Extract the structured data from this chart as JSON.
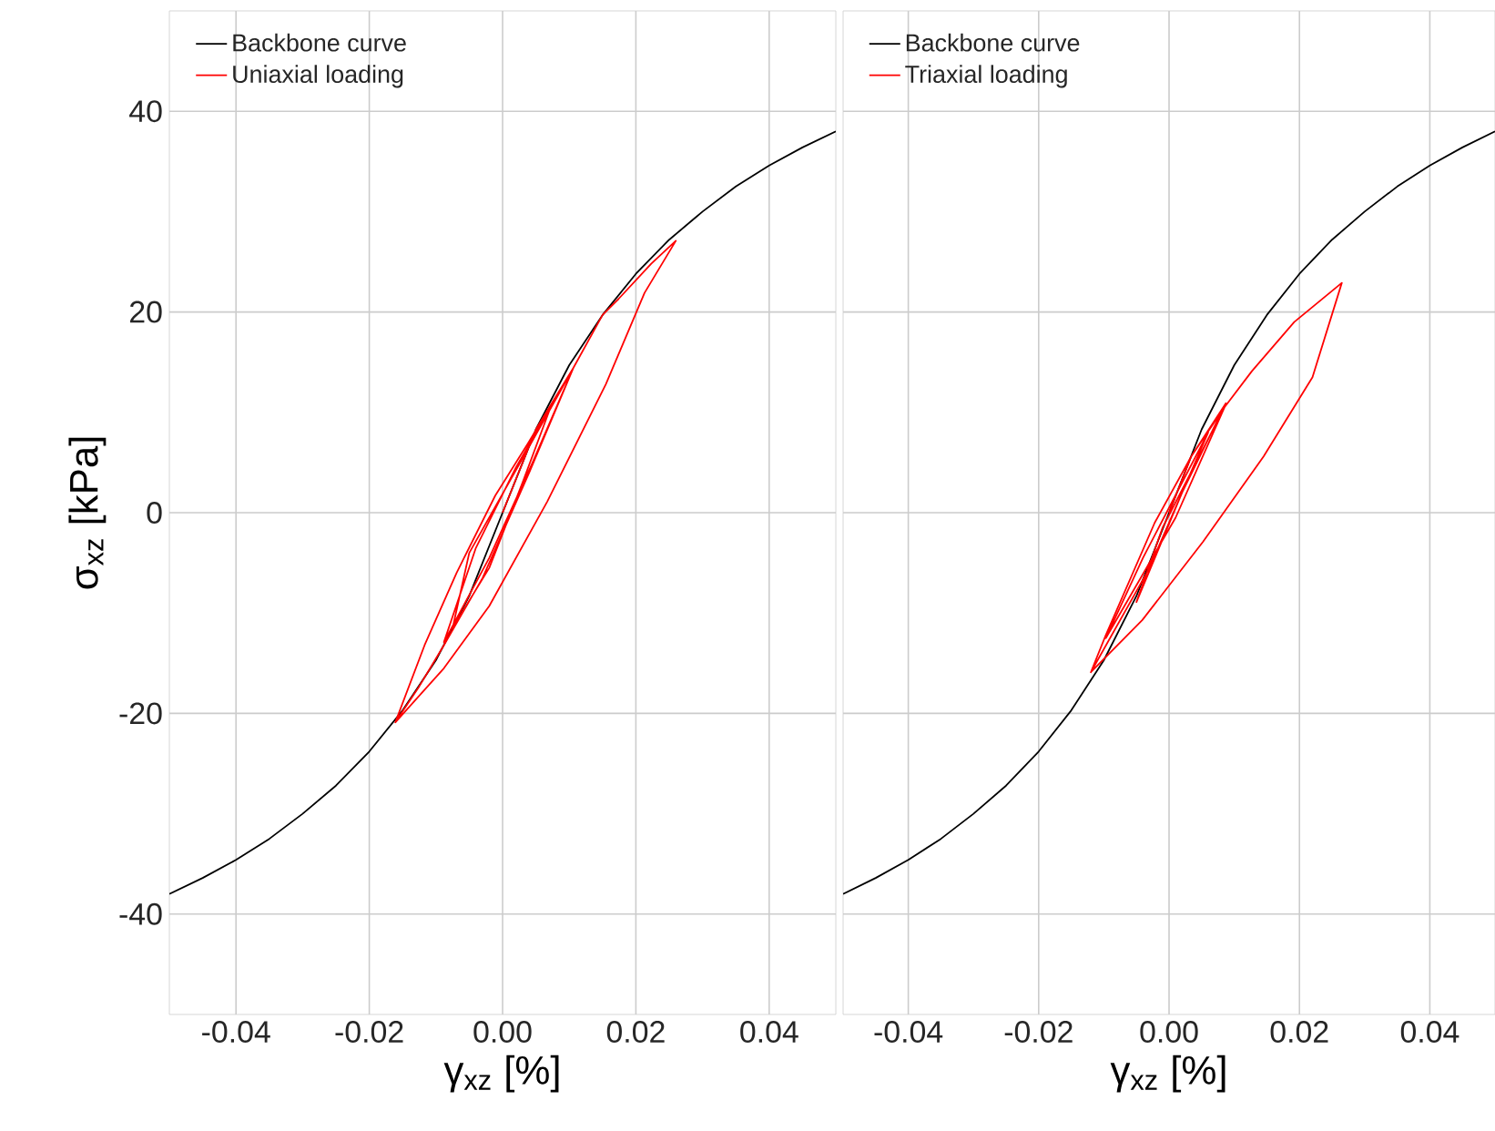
{
  "chart_data": [
    {
      "type": "line",
      "xlabel": "γ$_{xz}$ [%]",
      "ylabel": "σ$_{xz}$ [kPa]",
      "xlim": [
        -0.05,
        0.05
      ],
      "ylim": [
        -50,
        50
      ],
      "xticks": [
        -0.04,
        -0.02,
        {
          "value": 0,
          "label": "0.00"
        },
        0.02,
        0.04
      ],
      "yticks": [
        -40,
        -20,
        0,
        20,
        40
      ],
      "grid": true,
      "legend": "top left",
      "series": [
        {
          "name": "Backbone curve",
          "color": "#000000",
          "x": [
            -0.05,
            -0.045,
            -0.04,
            -0.035,
            -0.03,
            -0.025,
            -0.02,
            -0.015,
            -0.01,
            -0.005,
            0,
            0.005,
            0.01,
            0.015,
            0.02,
            0.025,
            0.03,
            0.035,
            0.04,
            0.045,
            0.05
          ],
          "values": [
            -38.0,
            -36.4,
            -34.6,
            -32.5,
            -30.0,
            -27.2,
            -23.8,
            -19.7,
            -14.7,
            -8.3,
            0,
            8.3,
            14.7,
            19.7,
            23.8,
            27.2,
            30.0,
            32.5,
            34.6,
            36.4,
            38.0
          ]
        },
        {
          "name": "Uniaxial loading",
          "color": "#ff0000",
          "x": [
            0,
            0.005,
            0.0106,
            0.0045,
            -0.002,
            -0.0088,
            -0.004,
            0.002,
            0.0072,
            0.003,
            -0.002,
            -0.0075,
            -0.005,
            0.0035,
            0.0106,
            0.004,
            -0.003,
            -0.0088,
            -0.0125,
            -0.0161,
            -0.0117,
            -0.0069,
            -0.0011,
            0.0038,
            0.0106,
            0.015,
            0.0174,
            0.0223,
            0.026,
            0.0213,
            0.0155,
            0.0067,
            -0.002,
            -0.0088,
            -0.0161
          ],
          "values": [
            0,
            8.3,
            14.4,
            5.0,
            -4.5,
            -12.9,
            -3.5,
            4.5,
            10.5,
            3.0,
            -5.5,
            -11.5,
            -4.0,
            6.0,
            14.4,
            4.0,
            -6.5,
            -13.2,
            -17.3,
            -20.9,
            -13.2,
            -6.0,
            1.7,
            6.9,
            14.4,
            19.7,
            21.3,
            24.8,
            27.1,
            21.9,
            12.8,
            1.1,
            -9.3,
            -15.5,
            -20.9
          ]
        }
      ]
    },
    {
      "type": "line",
      "xlabel": "γ$_{xz}$ [%]",
      "xlim": [
        -0.05,
        0.05
      ],
      "ylim": [
        -50,
        50
      ],
      "xticks": [
        -0.04,
        -0.02,
        {
          "value": 0,
          "label": "0.00"
        },
        0.02,
        0.04
      ],
      "yticks": [
        -40,
        -20,
        0,
        20,
        40
      ],
      "tick_labels": "x",
      "grid": true,
      "legend": "top left",
      "series": [
        {
          "name": "Backbone curve",
          "color": "#000000",
          "x": [
            -0.05,
            -0.045,
            -0.04,
            -0.035,
            -0.03,
            -0.025,
            -0.02,
            -0.015,
            -0.01,
            -0.005,
            0,
            0.005,
            0.01,
            0.015,
            0.02,
            0.025,
            0.03,
            0.035,
            0.04,
            0.045,
            0.05
          ],
          "values": [
            -38.0,
            -36.4,
            -34.6,
            -32.5,
            -30.0,
            -27.2,
            -23.8,
            -19.7,
            -14.7,
            -8.3,
            0,
            8.3,
            14.7,
            19.7,
            23.8,
            27.2,
            30.0,
            32.5,
            34.6,
            36.4,
            38.0
          ]
        },
        {
          "name": "Triaxial loading",
          "color": "#ff0000",
          "x": [
            0,
            0.0034,
            0.0087,
            0.002,
            -0.005,
            -0.001,
            0.0085,
            0.001,
            -0.0097,
            -0.004,
            0.006,
            -0.003,
            -0.012,
            -0.0097,
            -0.0022,
            0.0034,
            0.0085,
            0.0127,
            0.0192,
            0.0265,
            0.022,
            0.0145,
            0.0052,
            -0.0041,
            -0.012
          ],
          "values": [
            0,
            5.6,
            10.9,
            2.0,
            -8.9,
            -1.5,
            10.5,
            -0.5,
            -12.5,
            -4.5,
            8.0,
            -5.5,
            -15.9,
            -12.2,
            -1.0,
            5.6,
            10.5,
            14.1,
            19.0,
            22.9,
            13.5,
            5.6,
            -2.9,
            -10.7,
            -15.9
          ]
        }
      ]
    }
  ]
}
